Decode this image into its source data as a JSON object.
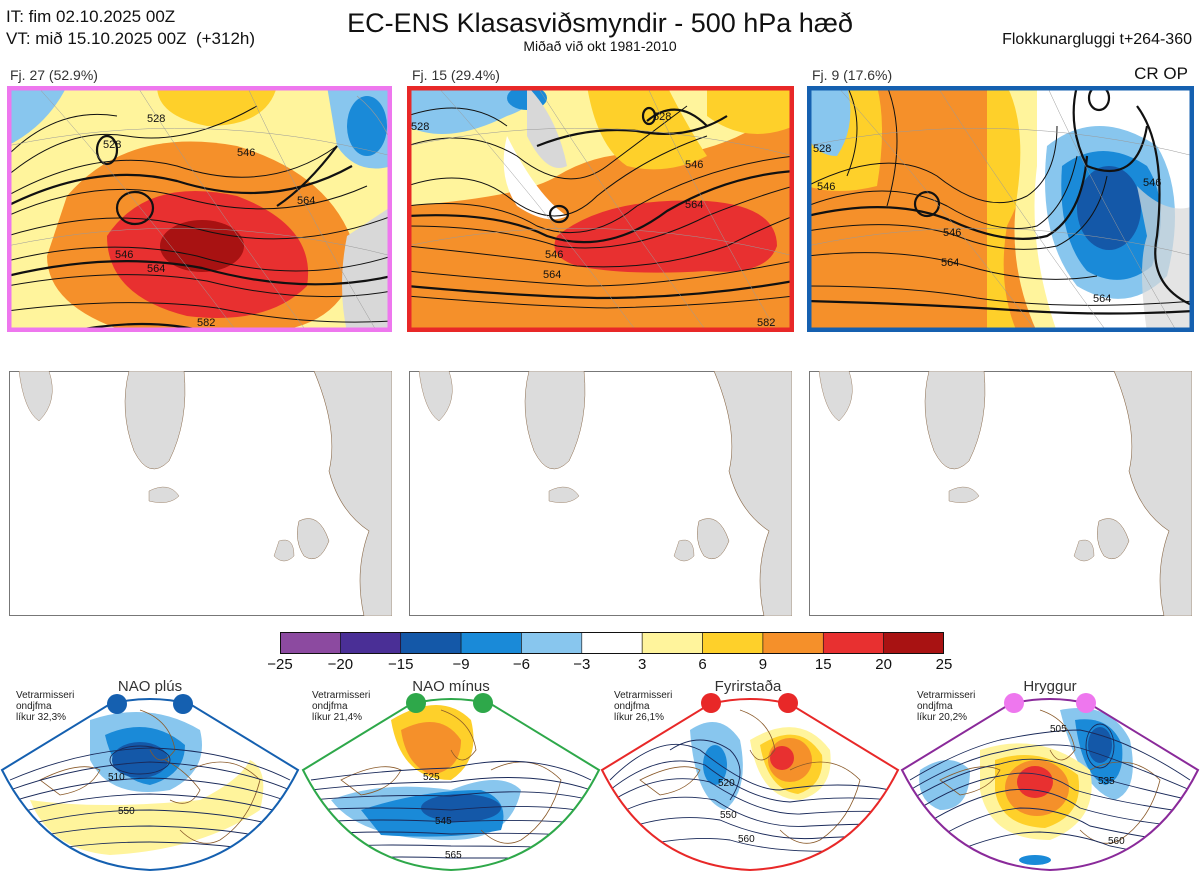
{
  "header": {
    "init_line": "IT: fim 02.10.2025 00Z",
    "valid_line": "VT: mið 15.10.2025 00Z  (+312h)",
    "title": "EC-ENS Klasasviðsmyndir - 500 hPa hæð",
    "subtitle": "Miðað við okt 1981-2010",
    "window": "Flokkunargluggi t+264-360",
    "regime_tag": "CR OP"
  },
  "clusters": [
    {
      "label": "Fj. 27 (52.9%)",
      "border": "#ee77ee",
      "contours": [
        "528",
        "546",
        "564",
        "582",
        "528",
        "546",
        "564"
      ]
    },
    {
      "label": "Fj. 15 (29.4%)",
      "border": "#e82828",
      "contours": [
        "528",
        "546",
        "564",
        "582",
        "528",
        "546",
        "564"
      ]
    },
    {
      "label": "Fj. 9 (17.6%)",
      "border": "#1560b0",
      "contours": [
        "528",
        "546",
        "564",
        "546",
        "546",
        "564"
      ]
    }
  ],
  "colorbar": {
    "colors": [
      "#8c4aa0",
      "#4a2f96",
      "#1458a8",
      "#1a8ad8",
      "#88c6ee",
      "#ffffff",
      "#fff49c",
      "#fed02a",
      "#f5902a",
      "#e83030",
      "#a81212"
    ],
    "labels": [
      "−25",
      "−20",
      "−15",
      "−9",
      "−6",
      "−3",
      "3",
      "6",
      "9",
      "15",
      "20",
      "25"
    ]
  },
  "regimes": [
    {
      "name": "NAO plús",
      "info": [
        "Vetrarmisseri",
        "ondjfma",
        "líkur 32,3%"
      ],
      "border": "#1560b0",
      "dot": "#1560b0",
      "contours": [
        "510",
        "550"
      ]
    },
    {
      "name": "NAO mínus",
      "info": [
        "Vetrarmisseri",
        "ondjfma",
        "líkur 21,4%"
      ],
      "border": "#2ea84a",
      "dot": "#2ea84a",
      "contours": [
        "525",
        "545",
        "565"
      ]
    },
    {
      "name": "Fyrirstaða",
      "info": [
        "Vetrarmisseri",
        "ondjfma",
        "líkur 26,1%"
      ],
      "border": "#e82828",
      "dot": "#e82828",
      "contours": [
        "520",
        "550",
        "560"
      ]
    },
    {
      "name": "Hryggur",
      "info": [
        "Vetrarmisseri",
        "ondjfma",
        "líkur 20,2%"
      ],
      "border": "#8a2a9a",
      "dot": "#ee77ee",
      "contours": [
        "505",
        "535",
        "560"
      ]
    }
  ]
}
